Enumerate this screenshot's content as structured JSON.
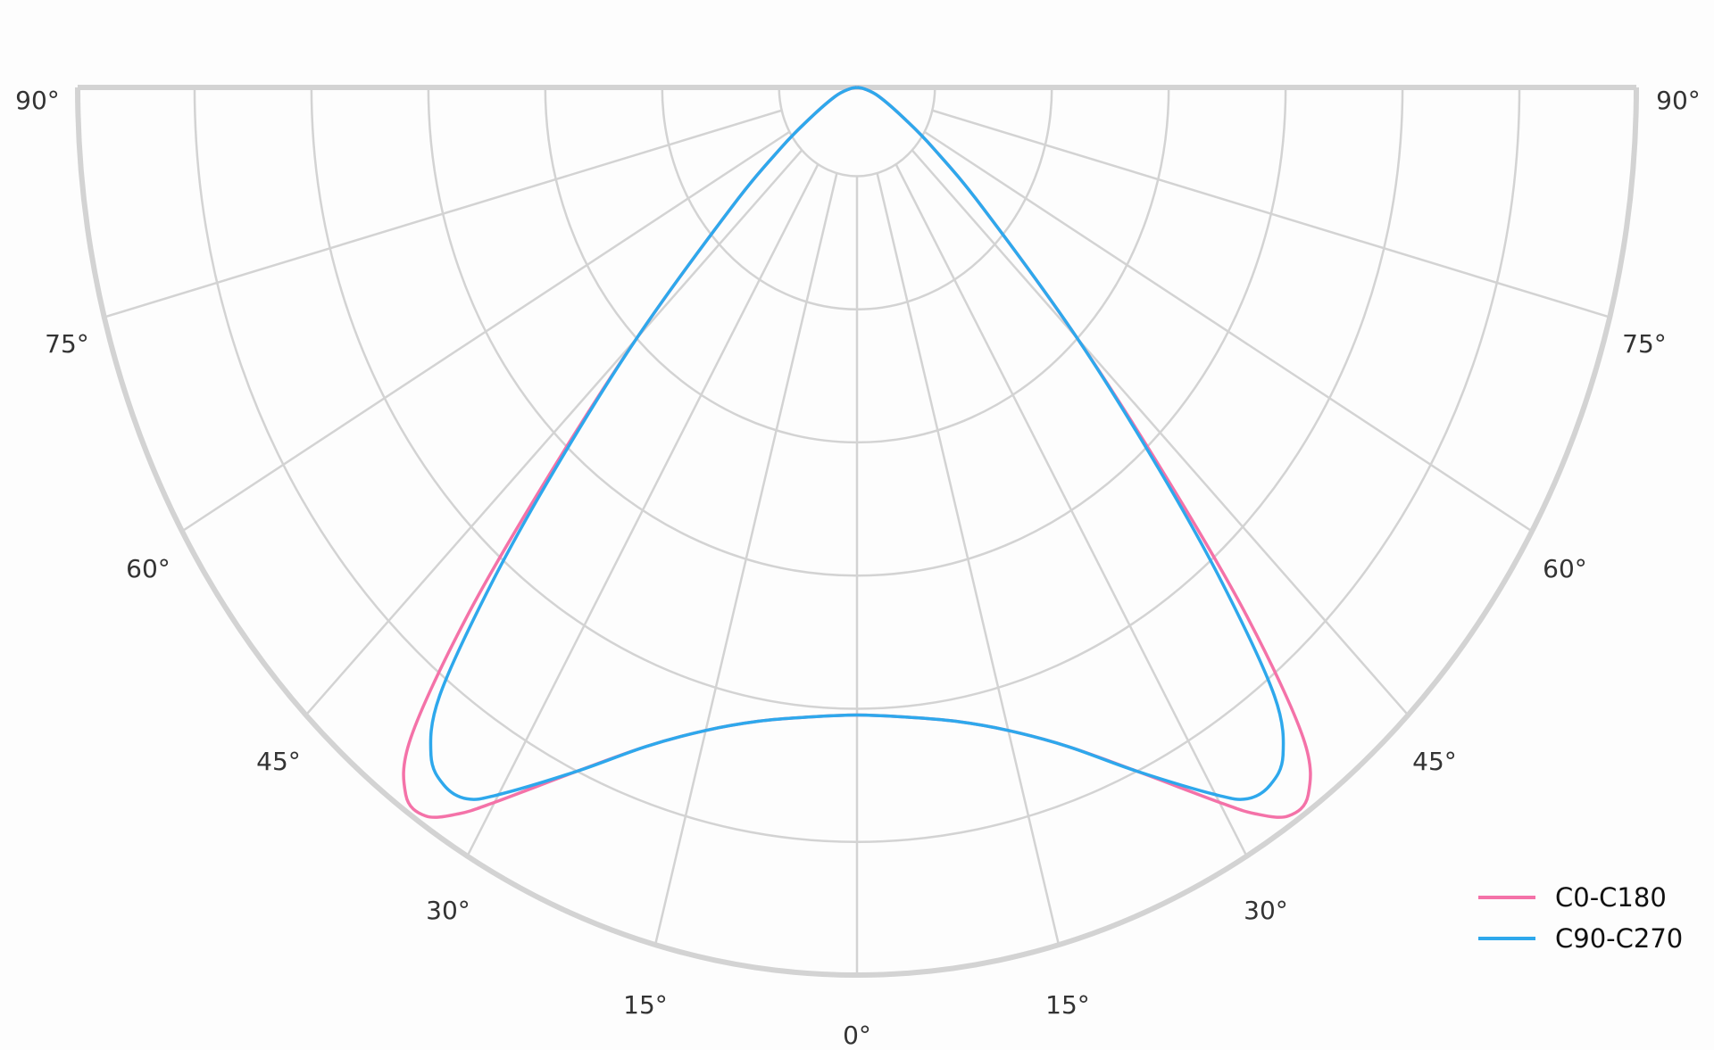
{
  "chart_data": {
    "type": "line",
    "projection": "polar",
    "half_plane": "lower",
    "angle_labels_left": [
      "90°",
      "75°",
      "60°",
      "45°",
      "30°",
      "15°"
    ],
    "angle_labels_right": [
      "90°",
      "75°",
      "60°",
      "45°",
      "30°",
      "15°"
    ],
    "angle_label_center": "0°",
    "angle_ticks_deg": [
      0,
      15,
      30,
      45,
      60,
      75,
      90
    ],
    "radial_rings": [
      0.1,
      0.25,
      0.4,
      0.55,
      0.7,
      0.85,
      1.0
    ],
    "rlim": [
      0,
      1
    ],
    "grid": true,
    "legend_position": "bottom-right",
    "angles_deg": [
      0,
      5,
      10,
      15,
      20,
      25,
      30,
      32,
      34,
      36,
      38,
      40,
      42,
      45,
      50,
      55,
      60,
      70,
      80,
      90
    ],
    "series": [
      {
        "name": "C0-C180",
        "color": "#f472a8",
        "values": [
          0.707,
          0.712,
          0.725,
          0.75,
          0.79,
          0.85,
          0.93,
          0.965,
          0.99,
          0.985,
          0.93,
          0.78,
          0.6,
          0.4,
          0.21,
          0.12,
          0.07,
          0.03,
          0.01,
          0.0
        ]
      },
      {
        "name": "C90-C270",
        "color": "#2ea8ec",
        "values": [
          0.707,
          0.712,
          0.725,
          0.75,
          0.79,
          0.85,
          0.92,
          0.945,
          0.948,
          0.93,
          0.87,
          0.73,
          0.58,
          0.4,
          0.21,
          0.12,
          0.07,
          0.03,
          0.01,
          0.0
        ]
      }
    ],
    "grid_color": "#d3d3d3"
  }
}
